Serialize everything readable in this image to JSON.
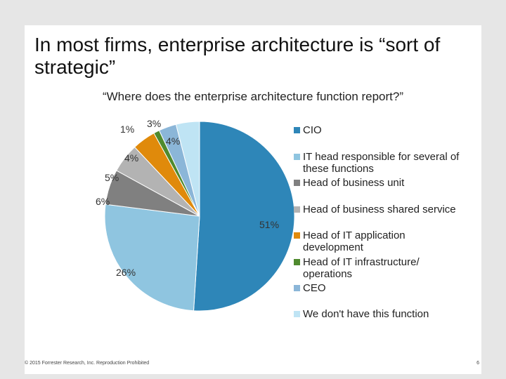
{
  "slide": {
    "title": "In most firms, enterprise architecture is “sort of strategic”",
    "copyright": "© 2015 Forrester Research, Inc. Reproduction Prohibited",
    "page_number": "6"
  },
  "chart_data": {
    "type": "pie",
    "title": "“Where does the enterprise architecture function report?”",
    "legend_position": "right",
    "slices": [
      {
        "label": "CIO",
        "value": 51,
        "display": "51%",
        "color": "#2e86b8"
      },
      {
        "label": "IT head responsible for several of these functions",
        "value": 26,
        "display": "26%",
        "color": "#8fc5e0"
      },
      {
        "label": "Head of business unit",
        "value": 6,
        "display": "6%",
        "color": "#808080"
      },
      {
        "label": "Head of business shared service",
        "value": 5,
        "display": "5%",
        "color": "#b3b3b3"
      },
      {
        "label": "Head of IT application development",
        "value": 4,
        "display": "4%",
        "color": "#e08a0b"
      },
      {
        "label": "Head of IT infrastructure/ operations",
        "value": 1,
        "display": "1%",
        "color": "#4f8a2e"
      },
      {
        "label": "CEO",
        "value": 3,
        "display": "3%",
        "color": "#8bb6d8"
      },
      {
        "label": "We don't have this function",
        "value": 4,
        "display": "4%",
        "color": "#bfe4f4"
      }
    ]
  }
}
